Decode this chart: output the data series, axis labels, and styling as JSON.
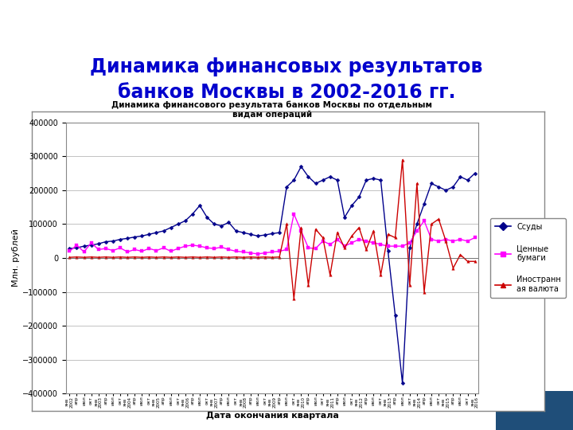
{
  "title_main_line1": "Динамика финансовых результатов",
  "title_main_line2": "банков Москвы в 2002-2016 гг.",
  "chart_title": "Динамика финансового результата банков Москвы по отдельным\nвидам операций",
  "xlabel": "Дата окончания квартала",
  "ylabel": "Млн. рублей",
  "ylim": [
    -400000,
    400000
  ],
  "yticks": [
    -400000,
    -300000,
    -200000,
    -100000,
    0,
    100000,
    200000,
    300000,
    400000
  ],
  "legend_labels": [
    "Ссуды",
    "Ценные\nбумаги",
    "Иностранн\nая валюта"
  ],
  "series_colors": [
    "#00008B",
    "#FF00FF",
    "#CC0000"
  ],
  "series_markers": [
    "D",
    "s",
    "^"
  ],
  "background_color": "#FFFFFF",
  "slide_bg": "#FFFFFF",
  "title_color": "#0000CD",
  "n_points": 57,
  "ssuda": [
    28000,
    30000,
    35000,
    38000,
    42000,
    48000,
    50000,
    55000,
    58000,
    62000,
    65000,
    70000,
    75000,
    80000,
    90000,
    100000,
    110000,
    130000,
    155000,
    120000,
    100000,
    95000,
    105000,
    80000,
    75000,
    70000,
    65000,
    68000,
    72000,
    75000,
    210000,
    230000,
    270000,
    240000,
    220000,
    230000,
    240000,
    230000,
    120000,
    155000,
    180000,
    230000,
    235000,
    230000,
    20000,
    -170000,
    -370000,
    30000,
    100000,
    160000,
    220000,
    210000,
    200000,
    210000,
    240000,
    230000,
    250000
  ],
  "bonds": [
    20000,
    38000,
    18000,
    45000,
    25000,
    28000,
    22000,
    30000,
    18000,
    25000,
    20000,
    28000,
    22000,
    30000,
    20000,
    28000,
    35000,
    38000,
    35000,
    30000,
    28000,
    32000,
    25000,
    20000,
    18000,
    15000,
    12000,
    15000,
    18000,
    20000,
    25000,
    130000,
    80000,
    30000,
    28000,
    50000,
    40000,
    55000,
    35000,
    45000,
    55000,
    50000,
    45000,
    40000,
    35000,
    35000,
    35000,
    45000,
    80000,
    110000,
    55000,
    50000,
    55000,
    50000,
    55000,
    50000,
    60000
  ],
  "fx": [
    2000,
    3000,
    2000,
    3000,
    2000,
    3000,
    2000,
    3000,
    2000,
    3000,
    2000,
    3000,
    2000,
    3000,
    2000,
    3000,
    2000,
    3000,
    2000,
    3000,
    2000,
    3000,
    2000,
    3000,
    2000,
    3000,
    2000,
    3000,
    2000,
    3000,
    100000,
    -120000,
    90000,
    -80000,
    85000,
    60000,
    -50000,
    75000,
    30000,
    65000,
    90000,
    25000,
    80000,
    -50000,
    70000,
    60000,
    290000,
    -80000,
    220000,
    -100000,
    100000,
    115000,
    50000,
    -30000,
    10000,
    -10000,
    -10000
  ],
  "x_tick_labels": [
    "янв",
    "апр",
    "июл",
    "окт",
    "янв",
    "апр",
    "июл",
    "окт",
    "янв",
    "апр",
    "июл",
    "окт",
    "янв",
    "апр",
    "июл",
    "окт",
    "янв",
    "апр",
    "июл",
    "окт",
    "янв",
    "апр",
    "июл",
    "окт",
    "янв",
    "апр",
    "июл",
    "окт",
    "янв",
    "апр",
    "июл",
    "окт",
    "янв",
    "апр",
    "июл",
    "окт",
    "янв",
    "апр",
    "июл",
    "окт",
    "янв",
    "апр",
    "июл",
    "окт",
    "янв",
    "апр",
    "июл",
    "окт",
    "янв",
    "апр",
    "июл",
    "окт",
    "янв",
    "апр",
    "июл",
    "окт",
    "янв"
  ],
  "year_labels": [
    "2002",
    "",
    "",
    "",
    "2003",
    "",
    "",
    "",
    "2004",
    "",
    "",
    "",
    "2005",
    "",
    "",
    "",
    "2006",
    "",
    "",
    "",
    "2007",
    "",
    "",
    "",
    "2008",
    "",
    "",
    "",
    "2009",
    "",
    "",
    "",
    "2010",
    "",
    "",
    "",
    "2011",
    "",
    "",
    "",
    "2012",
    "",
    "",
    "",
    "2013",
    "",
    "",
    "",
    "2014",
    "",
    "",
    "",
    "2015",
    "",
    "",
    "",
    "2016"
  ]
}
